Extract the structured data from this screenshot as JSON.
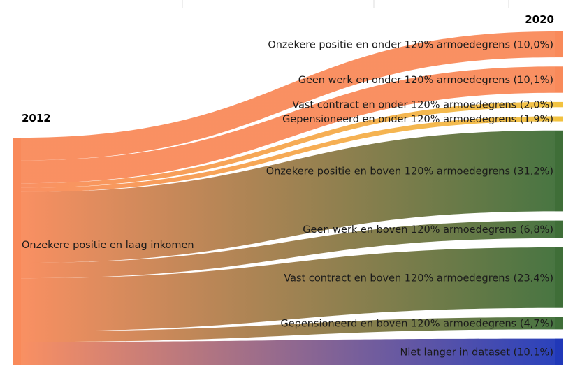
{
  "chart_data": {
    "type": "sankey",
    "title": "",
    "source_year": "2012",
    "target_year": "2020",
    "source": {
      "name": "Onzekere positie en laag inkomen",
      "color": "#f98a5a"
    },
    "targets": [
      {
        "name": "Onzekere positie en onder 120% armoedegrens",
        "value": 10.0,
        "label": "Onzekere positie en onder 120% armoedegrens (10,0%)",
        "color": "#f98a5a"
      },
      {
        "name": "Geen werk en onder 120% armoedegrens",
        "value": 10.1,
        "label": "Geen werk en onder 120% armoedegrens (10,1%)",
        "color": "#f98a5a"
      },
      {
        "name": "Vast contract en onder 120% armoedegrens",
        "value": 2.0,
        "label": "Vast contract en onder 120% armoedegrens (2,0%)",
        "color": "#f2c23f"
      },
      {
        "name": "Gepensioneerd en onder 120% armoedegrens",
        "value": 1.9,
        "label": "Gepensioneerd en onder 120% armoedegrens (1,9%)",
        "color": "#f2c23f"
      },
      {
        "name": "Onzekere positie en boven 120% armoedegrens",
        "value": 31.2,
        "label": "Onzekere positie en boven 120% armoedegrens (31,2%)",
        "color": "#3f6e38"
      },
      {
        "name": "Geen werk en boven 120% armoedegrens",
        "value": 6.8,
        "label": "Geen werk en boven 120% armoedegrens (6,8%)",
        "color": "#3f6e38"
      },
      {
        "name": "Vast contract en boven 120% armoedegrens",
        "value": 23.4,
        "label": "Vast contract en boven 120% armoedegrens (23,4%)",
        "color": "#3f6e38"
      },
      {
        "name": "Gepensioneerd en boven 120% armoedegrens",
        "value": 4.7,
        "label": "Gepensioneerd en boven 120% armoedegrens (4,7%)",
        "color": "#3f6e38"
      },
      {
        "name": "Niet langer in dataset",
        "value": 10.1,
        "label": "Niet langer in dataset (10,1%)",
        "color": "#2038b8"
      }
    ]
  }
}
